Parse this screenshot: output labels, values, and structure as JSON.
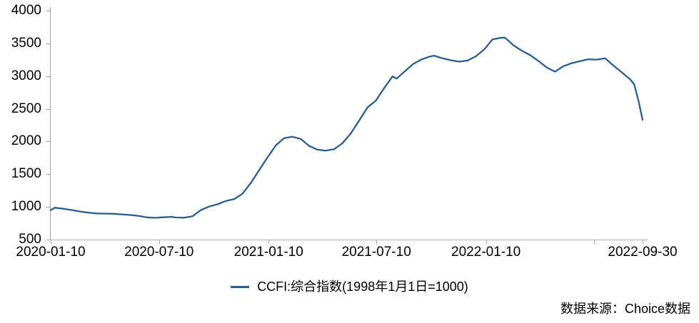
{
  "colors": {
    "line": "#2E5C8F",
    "axis": "#A8A8A8",
    "text": "#000000"
  },
  "legend": {
    "label": "CCFI:综合指数(1998年1月1日=1000)"
  },
  "source": {
    "text": "数据来源：Choice数据"
  },
  "chart_data": {
    "type": "line",
    "title": "",
    "xlabel": "",
    "ylabel": "",
    "grid": false,
    "legend_position": "bottom-center",
    "ylim": [
      500,
      4000
    ],
    "y_ticks": [
      500,
      1000,
      1500,
      2000,
      2500,
      3000,
      3500,
      4000
    ],
    "x_range": [
      "2020-01-10",
      "2022-09-30"
    ],
    "x_ticks": [
      {
        "date": "2020-01-10",
        "label": "2020-01-10"
      },
      {
        "date": "2020-07-10",
        "label": "2020-07-10"
      },
      {
        "date": "2021-01-10",
        "label": "2021-01-10"
      },
      {
        "date": "2021-07-10",
        "label": "2021-07-10"
      },
      {
        "date": "2022-01-10",
        "label": "2022-01-10"
      },
      {
        "date": "2022-07-10",
        "label": ""
      },
      {
        "date": "2022-09-30",
        "label": "2022-09-30"
      }
    ],
    "series": [
      {
        "name": "CCFI:综合指数(1998年1月1日=1000)",
        "color": "#2E5C8F",
        "points": [
          [
            "2020-01-10",
            950
          ],
          [
            "2020-01-17",
            987
          ],
          [
            "2020-01-31",
            972
          ],
          [
            "2020-02-14",
            952
          ],
          [
            "2020-02-28",
            930
          ],
          [
            "2020-03-13",
            912
          ],
          [
            "2020-03-27",
            900
          ],
          [
            "2020-04-10",
            897
          ],
          [
            "2020-04-24",
            895
          ],
          [
            "2020-05-08",
            886
          ],
          [
            "2020-05-22",
            876
          ],
          [
            "2020-06-05",
            863
          ],
          [
            "2020-06-19",
            840
          ],
          [
            "2020-07-03",
            833
          ],
          [
            "2020-07-17",
            841
          ],
          [
            "2020-07-31",
            848
          ],
          [
            "2020-08-07",
            838
          ],
          [
            "2020-08-21",
            835
          ],
          [
            "2020-09-04",
            855
          ],
          [
            "2020-09-18",
            950
          ],
          [
            "2020-10-02",
            1005
          ],
          [
            "2020-10-16",
            1040
          ],
          [
            "2020-10-30",
            1090
          ],
          [
            "2020-11-13",
            1118
          ],
          [
            "2020-11-27",
            1200
          ],
          [
            "2020-12-11",
            1365
          ],
          [
            "2020-12-25",
            1560
          ],
          [
            "2021-01-08",
            1755
          ],
          [
            "2021-01-22",
            1940
          ],
          [
            "2021-02-05",
            2052
          ],
          [
            "2021-02-19",
            2072
          ],
          [
            "2021-03-05",
            2038
          ],
          [
            "2021-03-19",
            1932
          ],
          [
            "2021-04-02",
            1875
          ],
          [
            "2021-04-16",
            1860
          ],
          [
            "2021-04-30",
            1882
          ],
          [
            "2021-05-14",
            1975
          ],
          [
            "2021-05-28",
            2122
          ],
          [
            "2021-06-11",
            2320
          ],
          [
            "2021-06-25",
            2520
          ],
          [
            "2021-07-09",
            2625
          ],
          [
            "2021-07-23",
            2815
          ],
          [
            "2021-08-06",
            2995
          ],
          [
            "2021-08-13",
            2962
          ],
          [
            "2021-08-27",
            3075
          ],
          [
            "2021-09-10",
            3188
          ],
          [
            "2021-09-24",
            3255
          ],
          [
            "2021-10-08",
            3300
          ],
          [
            "2021-10-15",
            3312
          ],
          [
            "2021-10-29",
            3272
          ],
          [
            "2021-11-12",
            3242
          ],
          [
            "2021-11-26",
            3220
          ],
          [
            "2021-12-10",
            3238
          ],
          [
            "2021-12-24",
            3302
          ],
          [
            "2022-01-07",
            3408
          ],
          [
            "2022-01-21",
            3562
          ],
          [
            "2022-02-04",
            3586
          ],
          [
            "2022-02-11",
            3588
          ],
          [
            "2022-02-25",
            3472
          ],
          [
            "2022-03-11",
            3388
          ],
          [
            "2022-03-25",
            3322
          ],
          [
            "2022-04-08",
            3232
          ],
          [
            "2022-04-22",
            3132
          ],
          [
            "2022-05-06",
            3068
          ],
          [
            "2022-05-20",
            3152
          ],
          [
            "2022-06-03",
            3198
          ],
          [
            "2022-06-17",
            3228
          ],
          [
            "2022-07-01",
            3258
          ],
          [
            "2022-07-15",
            3252
          ],
          [
            "2022-07-29",
            3272
          ],
          [
            "2022-08-12",
            3162
          ],
          [
            "2022-08-26",
            3058
          ],
          [
            "2022-09-09",
            2952
          ],
          [
            "2022-09-16",
            2872
          ],
          [
            "2022-09-23",
            2625
          ],
          [
            "2022-09-30",
            2332
          ]
        ]
      }
    ]
  }
}
